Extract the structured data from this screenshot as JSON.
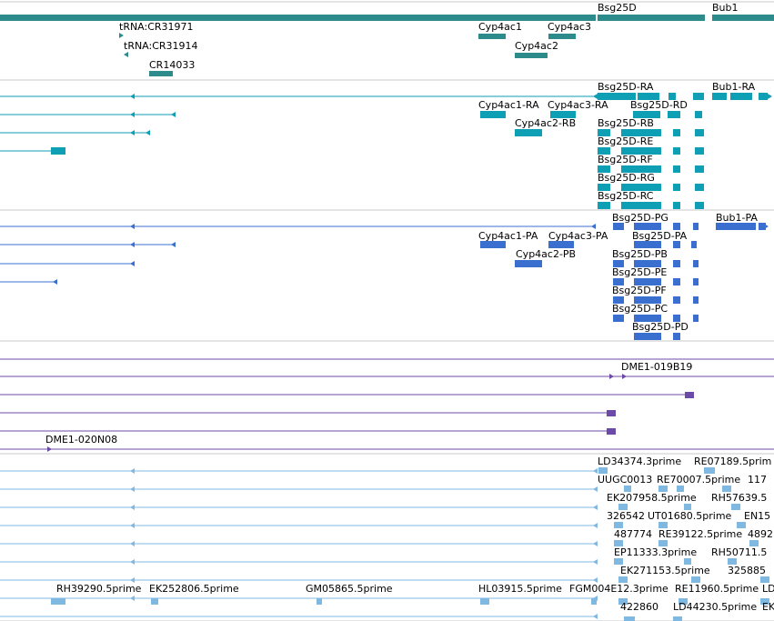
{
  "colors": {
    "gene": "#2e8b8b",
    "transcript": "#0e9fb5",
    "protein": "#3a6fd0",
    "clone": "#6b4aa8",
    "est": "#7fb8e0",
    "separator": "#c8c8c8"
  },
  "icons": {
    "left": "arrowhead-left-icon",
    "right": "arrowhead-right-icon"
  },
  "tracks": [
    {
      "id": "gene",
      "colorKey": "gene",
      "features": [
        {
          "label": "tRNA:CR31971",
          "dir": "right"
        },
        {
          "label": "tRNA:CR31914",
          "dir": "left"
        },
        {
          "label": "CR14033",
          "dir": "right"
        },
        {
          "label": "Cyp4ac1",
          "dir": "none"
        },
        {
          "label": "Cyp4ac3",
          "dir": "right"
        },
        {
          "label": "Cyp4ac2",
          "dir": "right"
        },
        {
          "label": "Bsg25D",
          "dir": "left"
        },
        {
          "label": "Bub1",
          "dir": "right"
        }
      ]
    },
    {
      "id": "transcript",
      "colorKey": "transcript",
      "features": [
        {
          "label": "Bsg25D-RA",
          "dir": "left"
        },
        {
          "label": "Bub1-RA",
          "dir": "right"
        },
        {
          "label": "Cyp4ac1-RA",
          "dir": "right"
        },
        {
          "label": "Cyp4ac3-RA",
          "dir": "right"
        },
        {
          "label": "Bsg25D-RD",
          "dir": "left"
        },
        {
          "label": "Cyp4ac2-RB",
          "dir": "right"
        },
        {
          "label": "Bsg25D-RB",
          "dir": "left"
        },
        {
          "label": "Bsg25D-RE",
          "dir": "left"
        },
        {
          "label": "Bsg25D-RF",
          "dir": "left"
        },
        {
          "label": "Bsg25D-RG",
          "dir": "left"
        },
        {
          "label": "Bsg25D-RC",
          "dir": "left"
        }
      ]
    },
    {
      "id": "protein",
      "colorKey": "protein",
      "features": [
        {
          "label": "Bsg25D-PG",
          "dir": "left"
        },
        {
          "label": "Bub1-PA",
          "dir": "right"
        },
        {
          "label": "Cyp4ac1-PA",
          "dir": "right"
        },
        {
          "label": "Cyp4ac3-PA",
          "dir": "right"
        },
        {
          "label": "Bsg25D-PA",
          "dir": "left"
        },
        {
          "label": "Cyp4ac2-PB",
          "dir": "right"
        },
        {
          "label": "Bsg25D-PB",
          "dir": "left"
        },
        {
          "label": "Bsg25D-PE",
          "dir": "left"
        },
        {
          "label": "Bsg25D-PF",
          "dir": "left"
        },
        {
          "label": "Bsg25D-PC",
          "dir": "left"
        },
        {
          "label": "Bsg25D-PD",
          "dir": "left"
        }
      ]
    },
    {
      "id": "clone",
      "colorKey": "clone",
      "features": [
        {
          "label": "",
          "dir": "none"
        },
        {
          "label": "DME1-019B19",
          "dir": "right"
        },
        {
          "label": "",
          "dir": "right"
        },
        {
          "label": "",
          "dir": "right"
        },
        {
          "label": "",
          "dir": "right"
        },
        {
          "label": "DME1-020N08",
          "dir": "right"
        }
      ]
    },
    {
      "id": "est",
      "colorKey": "est",
      "features": [
        {
          "label": "LD34374.3prime",
          "dir": "left"
        },
        {
          "label": "RE07189.5prim",
          "dir": "left"
        },
        {
          "label": "UUGC0013",
          "dir": "left"
        },
        {
          "label": "RE70007.5prime",
          "dir": "left"
        },
        {
          "label": "117",
          "dir": "left"
        },
        {
          "label": "EK207958.5prime",
          "dir": "left"
        },
        {
          "label": "RH57639.5",
          "dir": "left"
        },
        {
          "label": "326542",
          "dir": "left"
        },
        {
          "label": "UT01680.5prime",
          "dir": "left"
        },
        {
          "label": "EN15",
          "dir": "left"
        },
        {
          "label": "487774",
          "dir": "left"
        },
        {
          "label": "RE39122.5prime",
          "dir": "left"
        },
        {
          "label": "4892",
          "dir": "left"
        },
        {
          "label": "EP11333.3prime",
          "dir": "left"
        },
        {
          "label": "RH50711.5",
          "dir": "left"
        },
        {
          "label": "EK271153.5prime",
          "dir": "left"
        },
        {
          "label": "325885",
          "dir": "left"
        },
        {
          "label": "RH39290.5prime",
          "dir": "left"
        },
        {
          "label": "EK252806.5prime",
          "dir": "left"
        },
        {
          "label": "GM05865.5prime",
          "dir": "left"
        },
        {
          "label": "HL03915.5prime",
          "dir": "left"
        },
        {
          "label": "FGM004E12.3prime",
          "dir": "left"
        },
        {
          "label": "RE11960.5prime",
          "dir": "left"
        },
        {
          "label": "LD",
          "dir": "left"
        },
        {
          "label": "422860",
          "dir": "left"
        },
        {
          "label": "LD44230.5prime",
          "dir": "left"
        },
        {
          "label": "EK",
          "dir": "left"
        }
      ]
    }
  ]
}
